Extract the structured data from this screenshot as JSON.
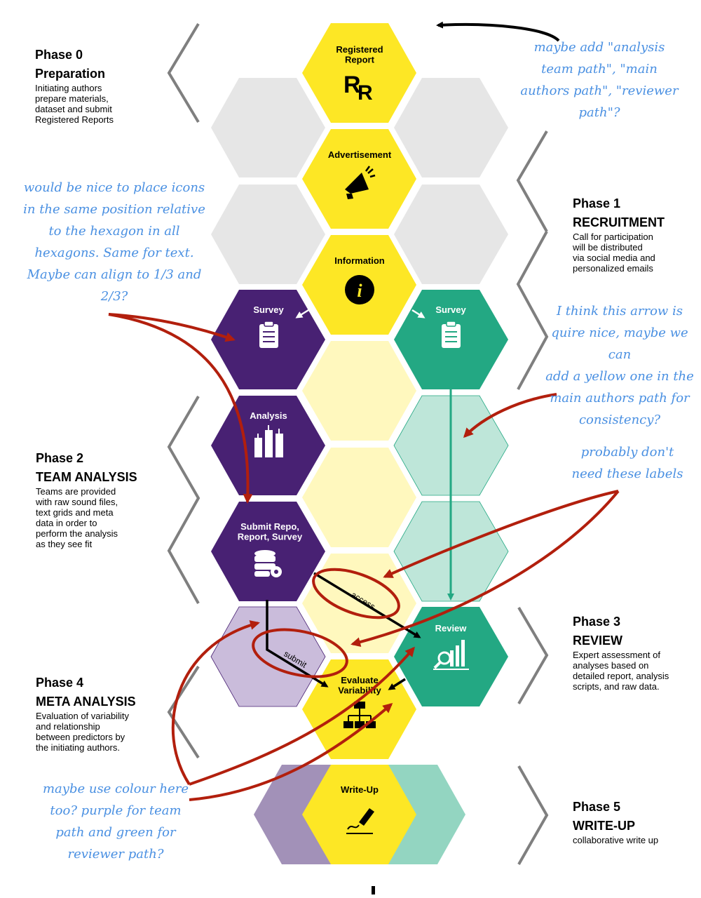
{
  "phases": [
    {
      "number": "Phase 0",
      "title": "Preparation",
      "desc": "Initiating authors\nprepare materials,\ndataset and submit\nRegistered Reports"
    },
    {
      "number": "Phase 1",
      "title": "RECRUITMENT",
      "desc": "Call for participation\nwill be distributed\nvia social media and\npersonalized emails"
    },
    {
      "number": "Phase 2",
      "title": "TEAM ANALYSIS",
      "desc": "Teams are provided\nwith raw sound files,\ntext grids and meta\ndata in order to\nperform the analysis\nas they see fit"
    },
    {
      "number": "Phase 3",
      "title": "REVIEW",
      "desc": "Expert assessment of\nanalyses based on\ndetailed report, analysis\nscripts, and raw data."
    },
    {
      "number": "Phase 4",
      "title": "META ANALYSIS",
      "desc": "Evaluation of variability\nand relationship\nbetween predictors by\nthe initiating authors."
    },
    {
      "number": "Phase 5",
      "title": "WRITE-UP",
      "desc": "collaborative write up"
    }
  ],
  "hexagons": {
    "registered_report": "Registered\nReport",
    "advertisement": "Advertisement",
    "information": "Information",
    "survey_team": "Survey",
    "survey_review": "Survey",
    "analysis": "Analysis",
    "submit": "Submit Repo,\nReport, Survey",
    "review": "Review",
    "evaluate": "Evaluate\nVariability",
    "writeup": "Write-Up"
  },
  "arrow_labels": {
    "access": "access",
    "submit": "submit"
  },
  "notes": [
    "maybe add \"analysis\nteam path\", \"main\nauthors path\", \"reviewer\npath\"?",
    "would be nice to place icons\nin the same position relative\nto the hexagon in all\nhexagons. Same for text.\nMaybe can align to 1/3 and\n2/3?",
    "I think this arrow is\nquire nice, maybe we can\nadd a yellow one in the\nmain authors path for\nconsistency?",
    "probably don't\nneed these labels",
    "maybe use colour here\ntoo? purple for team\npath and green for\nreviewer path?"
  ],
  "colors": {
    "yellow": "#FDE725",
    "light_yellow": "#FFF8BE",
    "purple": "#482173",
    "light_purple": "#CABCDB",
    "green": "#23A883",
    "light_green": "#BEE6D9",
    "grey": "#E6E6E6",
    "red": "#B21F0D",
    "blue": "#4A90E2"
  },
  "icons": {
    "registered_report": "rr-logo-icon",
    "advertisement": "megaphone-icon",
    "information": "info-icon",
    "survey": "clipboard-icon",
    "analysis": "bar-chart-icon",
    "submit": "database-gear-icon",
    "review": "magnifier-chart-icon",
    "evaluate": "org-chart-icon",
    "writeup": "signature-pen-icon"
  }
}
